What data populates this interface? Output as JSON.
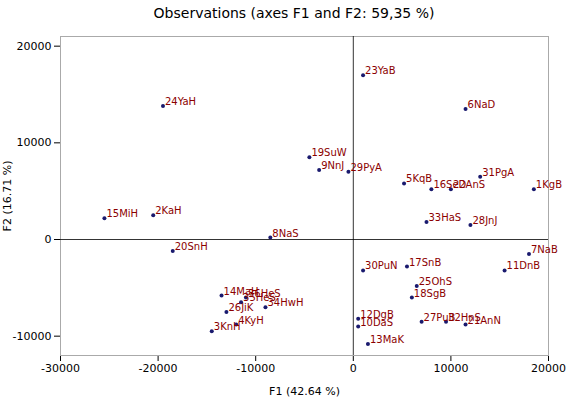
{
  "chart_data": {
    "type": "scatter",
    "title": "Observations (axes F1 and F2: 59,35 %)",
    "xlabel": "F1 (42.64 %)",
    "ylabel": "F2 (16.71 %)",
    "xlim": [
      -30000,
      20000
    ],
    "ylim": [
      -12000,
      21000
    ],
    "xticks": [
      -30000,
      -20000,
      -10000,
      0,
      10000,
      20000
    ],
    "yticks": [
      -10000,
      0,
      10000,
      20000
    ],
    "color": "#1a1a6e",
    "grid": false,
    "labels": [
      "1KgB",
      "2KaH",
      "3KnH",
      "4KyH",
      "5KqB",
      "6NaD",
      "7NaB",
      "8NaS",
      "9NnJ",
      "10DaS",
      "11DnB",
      "12DgB",
      "13MaK",
      "14MaH",
      "15MiH",
      "16SeD",
      "17SnB",
      "18SgB",
      "19SuW",
      "20SnH",
      "21AnN",
      "22AnS",
      "23YaB",
      "24YaH",
      "25OhS",
      "26JiK",
      "27PuB",
      "28JnJ",
      "29PyA",
      "30PuN",
      "31PgA",
      "32HnS",
      "33HaS",
      "34HwH",
      "35HeS",
      "36HeS"
    ],
    "x": [
      18500,
      -20500,
      -14500,
      -12000,
      5200,
      11500,
      18000,
      -8500,
      -3500,
      500,
      15500,
      500,
      1500,
      -13500,
      -25500,
      8000,
      5500,
      6000,
      -4500,
      -18500,
      11500,
      10000,
      1000,
      -19500,
      6500,
      -13000,
      7000,
      12000,
      -500,
      1000,
      13000,
      9500,
      7500,
      -9000,
      -11500,
      -11000
    ],
    "values": [
      5200,
      2500,
      -9500,
      -8800,
      5800,
      13500,
      -1500,
      200,
      7200,
      -9000,
      -3200,
      -8200,
      -10800,
      -5800,
      2200,
      5200,
      -2800,
      -6000,
      8500,
      -1200,
      -8800,
      5200,
      17000,
      13800,
      -4800,
      -7500,
      -8500,
      1500,
      7000,
      -3200,
      6500,
      -8500,
      1800,
      -7000,
      -6500,
      -6000
    ]
  }
}
